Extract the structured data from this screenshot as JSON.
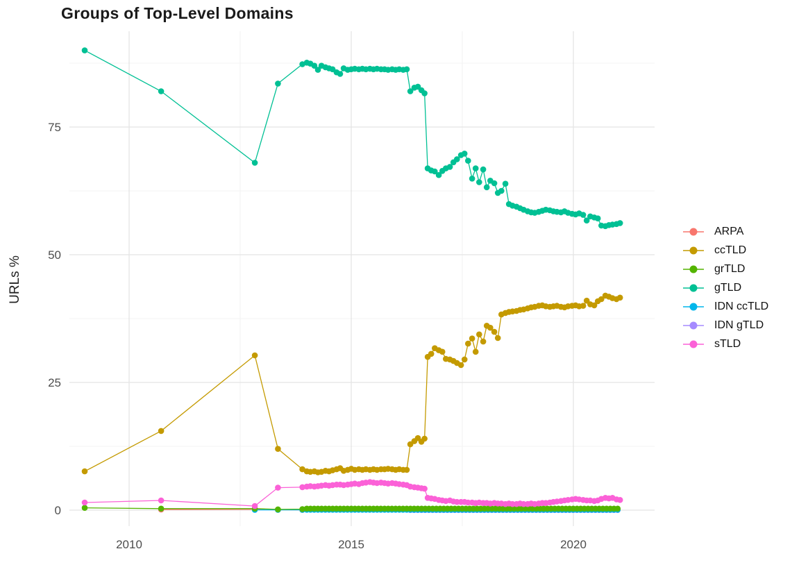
{
  "chart_data": {
    "type": "scatter",
    "title": "Groups of Top-Level Domains",
    "xlabel": "",
    "ylabel": "URLs %",
    "x_ticks": [
      2010,
      2015,
      2020
    ],
    "x_minor": [
      2012.5,
      2017.5
    ],
    "y_ticks": [
      0,
      25,
      50,
      75
    ],
    "y_minor": [
      12.5,
      37.5,
      62.5,
      87.5
    ],
    "xlim": [
      2008.7,
      2021.8
    ],
    "ylim": [
      -2.8,
      93.8
    ],
    "grid": true,
    "legend_position": "right",
    "colors": {
      "major_grid": "#e4e4e4",
      "minor_grid": "#f3f3f3",
      "tick_text": "#4d4d4d",
      "background": "#ffffff"
    },
    "series": [
      {
        "name": "ARPA",
        "color": "#F8766D",
        "points": [
          [
            2010.72,
            0.12
          ],
          [
            2012.83,
            0.15
          ],
          [
            2013.35,
            0.1
          ],
          [
            2013.9,
            0.05
          ]
        ]
      },
      {
        "name": "ccTLD",
        "color": "#C49A00",
        "points": [
          [
            2009.0,
            7.6
          ],
          [
            2010.72,
            15.5
          ],
          [
            2012.83,
            30.3
          ],
          [
            2013.35,
            12.0
          ],
          [
            2013.9,
            8.0
          ],
          [
            2014.0,
            7.6
          ],
          [
            2014.08,
            7.5
          ],
          [
            2014.17,
            7.6
          ],
          [
            2014.25,
            7.4
          ],
          [
            2014.33,
            7.5
          ],
          [
            2014.42,
            7.7
          ],
          [
            2014.5,
            7.6
          ],
          [
            2014.58,
            7.8
          ],
          [
            2014.67,
            8.0
          ],
          [
            2014.75,
            8.2
          ],
          [
            2014.83,
            7.7
          ],
          [
            2014.92,
            7.9
          ],
          [
            2015.0,
            8.1
          ],
          [
            2015.08,
            7.9
          ],
          [
            2015.17,
            8.0
          ],
          [
            2015.25,
            7.9
          ],
          [
            2015.33,
            8.0
          ],
          [
            2015.42,
            7.9
          ],
          [
            2015.5,
            8.0
          ],
          [
            2015.58,
            7.9
          ],
          [
            2015.67,
            8.0
          ],
          [
            2015.75,
            8.0
          ],
          [
            2015.83,
            8.1
          ],
          [
            2015.92,
            8.0
          ],
          [
            2016.0,
            7.9
          ],
          [
            2016.08,
            8.0
          ],
          [
            2016.17,
            7.9
          ],
          [
            2016.25,
            7.9
          ],
          [
            2016.33,
            12.9
          ],
          [
            2016.42,
            13.5
          ],
          [
            2016.5,
            14.1
          ],
          [
            2016.58,
            13.4
          ],
          [
            2016.65,
            14.0
          ],
          [
            2016.72,
            30.0
          ],
          [
            2016.8,
            30.6
          ],
          [
            2016.88,
            31.7
          ],
          [
            2016.97,
            31.3
          ],
          [
            2017.05,
            31.0
          ],
          [
            2017.13,
            29.6
          ],
          [
            2017.22,
            29.5
          ],
          [
            2017.3,
            29.2
          ],
          [
            2017.38,
            28.8
          ],
          [
            2017.47,
            28.4
          ],
          [
            2017.55,
            29.5
          ],
          [
            2017.63,
            32.6
          ],
          [
            2017.72,
            33.6
          ],
          [
            2017.8,
            31.0
          ],
          [
            2017.88,
            34.4
          ],
          [
            2017.97,
            33.0
          ],
          [
            2018.05,
            36.1
          ],
          [
            2018.13,
            35.7
          ],
          [
            2018.22,
            34.9
          ],
          [
            2018.3,
            33.7
          ],
          [
            2018.38,
            38.3
          ],
          [
            2018.47,
            38.6
          ],
          [
            2018.55,
            38.8
          ],
          [
            2018.63,
            38.9
          ],
          [
            2018.72,
            39.0
          ],
          [
            2018.8,
            39.2
          ],
          [
            2018.88,
            39.3
          ],
          [
            2018.97,
            39.5
          ],
          [
            2019.05,
            39.7
          ],
          [
            2019.13,
            39.8
          ],
          [
            2019.22,
            40.0
          ],
          [
            2019.3,
            40.1
          ],
          [
            2019.38,
            39.9
          ],
          [
            2019.47,
            39.8
          ],
          [
            2019.55,
            39.9
          ],
          [
            2019.63,
            40.0
          ],
          [
            2019.72,
            39.8
          ],
          [
            2019.8,
            39.7
          ],
          [
            2019.88,
            39.9
          ],
          [
            2019.97,
            40.0
          ],
          [
            2020.05,
            40.1
          ],
          [
            2020.13,
            39.9
          ],
          [
            2020.22,
            40.0
          ],
          [
            2020.3,
            41.0
          ],
          [
            2020.38,
            40.3
          ],
          [
            2020.47,
            40.1
          ],
          [
            2020.55,
            40.9
          ],
          [
            2020.63,
            41.3
          ],
          [
            2020.72,
            42.0
          ],
          [
            2020.8,
            41.8
          ],
          [
            2020.88,
            41.5
          ],
          [
            2020.97,
            41.3
          ],
          [
            2021.05,
            41.6
          ]
        ]
      },
      {
        "name": "grTLD",
        "color": "#53B400",
        "points": [
          [
            2009.0,
            0.45
          ],
          [
            2010.72,
            0.3
          ],
          [
            2012.83,
            0.3
          ],
          [
            2013.35,
            0.15
          ],
          [
            2013.9,
            0.2
          ]
        ],
        "fill": {
          "from": 2014.0,
          "to": 2021.05,
          "step": 0.0833,
          "value": 0.3
        }
      },
      {
        "name": "gTLD",
        "color": "#00C094",
        "points": [
          [
            2009.0,
            90.0
          ],
          [
            2010.72,
            82.0
          ],
          [
            2012.83,
            68.0
          ],
          [
            2013.35,
            83.5
          ],
          [
            2013.9,
            87.3
          ],
          [
            2014.0,
            87.6
          ],
          [
            2014.08,
            87.4
          ],
          [
            2014.17,
            87.0
          ],
          [
            2014.25,
            86.2
          ],
          [
            2014.33,
            87.0
          ],
          [
            2014.42,
            86.7
          ],
          [
            2014.5,
            86.5
          ],
          [
            2014.58,
            86.3
          ],
          [
            2014.67,
            85.7
          ],
          [
            2014.75,
            85.4
          ],
          [
            2014.83,
            86.5
          ],
          [
            2014.92,
            86.2
          ],
          [
            2015.0,
            86.3
          ],
          [
            2015.08,
            86.4
          ],
          [
            2015.17,
            86.3
          ],
          [
            2015.25,
            86.4
          ],
          [
            2015.33,
            86.3
          ],
          [
            2015.42,
            86.4
          ],
          [
            2015.5,
            86.3
          ],
          [
            2015.58,
            86.4
          ],
          [
            2015.67,
            86.3
          ],
          [
            2015.75,
            86.3
          ],
          [
            2015.83,
            86.2
          ],
          [
            2015.92,
            86.3
          ],
          [
            2016.0,
            86.2
          ],
          [
            2016.08,
            86.3
          ],
          [
            2016.17,
            86.2
          ],
          [
            2016.25,
            86.3
          ],
          [
            2016.33,
            82.0
          ],
          [
            2016.42,
            82.7
          ],
          [
            2016.5,
            82.9
          ],
          [
            2016.58,
            82.2
          ],
          [
            2016.65,
            81.6
          ],
          [
            2016.72,
            66.9
          ],
          [
            2016.8,
            66.5
          ],
          [
            2016.88,
            66.3
          ],
          [
            2016.97,
            65.6
          ],
          [
            2017.05,
            66.4
          ],
          [
            2017.13,
            66.9
          ],
          [
            2017.22,
            67.2
          ],
          [
            2017.3,
            68.1
          ],
          [
            2017.38,
            68.7
          ],
          [
            2017.47,
            69.5
          ],
          [
            2017.55,
            69.8
          ],
          [
            2017.63,
            68.4
          ],
          [
            2017.72,
            64.9
          ],
          [
            2017.8,
            66.9
          ],
          [
            2017.88,
            64.2
          ],
          [
            2017.97,
            66.7
          ],
          [
            2018.05,
            63.2
          ],
          [
            2018.13,
            64.5
          ],
          [
            2018.22,
            64.0
          ],
          [
            2018.3,
            62.1
          ],
          [
            2018.38,
            62.5
          ],
          [
            2018.47,
            63.9
          ],
          [
            2018.55,
            59.9
          ],
          [
            2018.63,
            59.6
          ],
          [
            2018.72,
            59.4
          ],
          [
            2018.8,
            59.1
          ],
          [
            2018.88,
            58.8
          ],
          [
            2018.97,
            58.5
          ],
          [
            2019.05,
            58.3
          ],
          [
            2019.13,
            58.2
          ],
          [
            2019.22,
            58.4
          ],
          [
            2019.3,
            58.6
          ],
          [
            2019.38,
            58.8
          ],
          [
            2019.47,
            58.7
          ],
          [
            2019.55,
            58.5
          ],
          [
            2019.63,
            58.4
          ],
          [
            2019.72,
            58.3
          ],
          [
            2019.8,
            58.5
          ],
          [
            2019.88,
            58.2
          ],
          [
            2019.97,
            58.0
          ],
          [
            2020.05,
            57.9
          ],
          [
            2020.13,
            58.1
          ],
          [
            2020.22,
            57.8
          ],
          [
            2020.3,
            56.7
          ],
          [
            2020.38,
            57.5
          ],
          [
            2020.47,
            57.3
          ],
          [
            2020.55,
            57.1
          ],
          [
            2020.63,
            55.7
          ],
          [
            2020.72,
            55.6
          ],
          [
            2020.8,
            55.8
          ],
          [
            2020.88,
            55.9
          ],
          [
            2020.97,
            56.0
          ],
          [
            2021.05,
            56.2
          ]
        ]
      },
      {
        "name": "IDN ccTLD",
        "color": "#00B6EB",
        "points": [
          [
            2012.83,
            0.05
          ],
          [
            2013.35,
            0.05
          ],
          [
            2013.9,
            0.06
          ]
        ],
        "fill": {
          "from": 2014.0,
          "to": 2021.05,
          "step": 0.0833,
          "value": 0.07
        }
      },
      {
        "name": "IDN gTLD",
        "color": "#A58AFF",
        "points": [],
        "fill": {
          "from": 2016.33,
          "to": 2021.05,
          "step": 0.0833,
          "value": 0.03
        }
      },
      {
        "name": "sTLD",
        "color": "#FB61D7",
        "points": [
          [
            2009.0,
            1.5
          ],
          [
            2010.72,
            1.9
          ],
          [
            2012.83,
            0.8
          ],
          [
            2013.35,
            4.4
          ],
          [
            2013.9,
            4.5
          ],
          [
            2014.0,
            4.6
          ],
          [
            2014.08,
            4.7
          ],
          [
            2014.17,
            4.6
          ],
          [
            2014.25,
            4.7
          ],
          [
            2014.33,
            4.8
          ],
          [
            2014.42,
            4.9
          ],
          [
            2014.5,
            4.8
          ],
          [
            2014.58,
            4.9
          ],
          [
            2014.67,
            5.0
          ],
          [
            2014.75,
            5.0
          ],
          [
            2014.83,
            4.9
          ],
          [
            2014.92,
            5.0
          ],
          [
            2015.0,
            5.1
          ],
          [
            2015.08,
            5.2
          ],
          [
            2015.17,
            5.1
          ],
          [
            2015.25,
            5.3
          ],
          [
            2015.33,
            5.4
          ],
          [
            2015.42,
            5.5
          ],
          [
            2015.5,
            5.4
          ],
          [
            2015.58,
            5.3
          ],
          [
            2015.67,
            5.4
          ],
          [
            2015.75,
            5.3
          ],
          [
            2015.83,
            5.2
          ],
          [
            2015.92,
            5.3
          ],
          [
            2016.0,
            5.2
          ],
          [
            2016.08,
            5.1
          ],
          [
            2016.17,
            5.0
          ],
          [
            2016.25,
            4.9
          ],
          [
            2016.33,
            4.6
          ],
          [
            2016.42,
            4.5
          ],
          [
            2016.5,
            4.4
          ],
          [
            2016.58,
            4.3
          ],
          [
            2016.65,
            4.2
          ],
          [
            2016.72,
            2.4
          ],
          [
            2016.8,
            2.3
          ],
          [
            2016.88,
            2.2
          ],
          [
            2016.97,
            2.0
          ],
          [
            2017.05,
            1.9
          ],
          [
            2017.13,
            1.8
          ],
          [
            2017.22,
            1.9
          ],
          [
            2017.3,
            1.7
          ],
          [
            2017.38,
            1.6
          ],
          [
            2017.47,
            1.6
          ],
          [
            2017.55,
            1.6
          ],
          [
            2017.63,
            1.5
          ],
          [
            2017.72,
            1.5
          ],
          [
            2017.8,
            1.4
          ],
          [
            2017.88,
            1.5
          ],
          [
            2017.97,
            1.4
          ],
          [
            2018.05,
            1.4
          ],
          [
            2018.13,
            1.3
          ],
          [
            2018.22,
            1.4
          ],
          [
            2018.3,
            1.3
          ],
          [
            2018.38,
            1.3
          ],
          [
            2018.47,
            1.2
          ],
          [
            2018.55,
            1.3
          ],
          [
            2018.63,
            1.2
          ],
          [
            2018.72,
            1.2
          ],
          [
            2018.8,
            1.3
          ],
          [
            2018.88,
            1.2
          ],
          [
            2018.97,
            1.2
          ],
          [
            2019.05,
            1.3
          ],
          [
            2019.13,
            1.2
          ],
          [
            2019.22,
            1.3
          ],
          [
            2019.3,
            1.4
          ],
          [
            2019.38,
            1.4
          ],
          [
            2019.47,
            1.5
          ],
          [
            2019.55,
            1.6
          ],
          [
            2019.63,
            1.7
          ],
          [
            2019.72,
            1.8
          ],
          [
            2019.8,
            1.9
          ],
          [
            2019.88,
            2.0
          ],
          [
            2019.97,
            2.1
          ],
          [
            2020.05,
            2.2
          ],
          [
            2020.13,
            2.1
          ],
          [
            2020.22,
            2.0
          ],
          [
            2020.3,
            1.9
          ],
          [
            2020.38,
            1.9
          ],
          [
            2020.47,
            1.8
          ],
          [
            2020.55,
            1.9
          ],
          [
            2020.63,
            2.2
          ],
          [
            2020.72,
            2.4
          ],
          [
            2020.8,
            2.3
          ],
          [
            2020.88,
            2.4
          ],
          [
            2020.97,
            2.1
          ],
          [
            2021.05,
            2.0
          ]
        ]
      }
    ],
    "legend_entries": [
      "ARPA",
      "ccTLD",
      "grTLD",
      "gTLD",
      "IDN ccTLD",
      "IDN gTLD",
      "sTLD"
    ],
    "draw_order": [
      "ARPA",
      "IDN gTLD",
      "IDN ccTLD",
      "grTLD",
      "sTLD",
      "ccTLD",
      "gTLD"
    ]
  }
}
